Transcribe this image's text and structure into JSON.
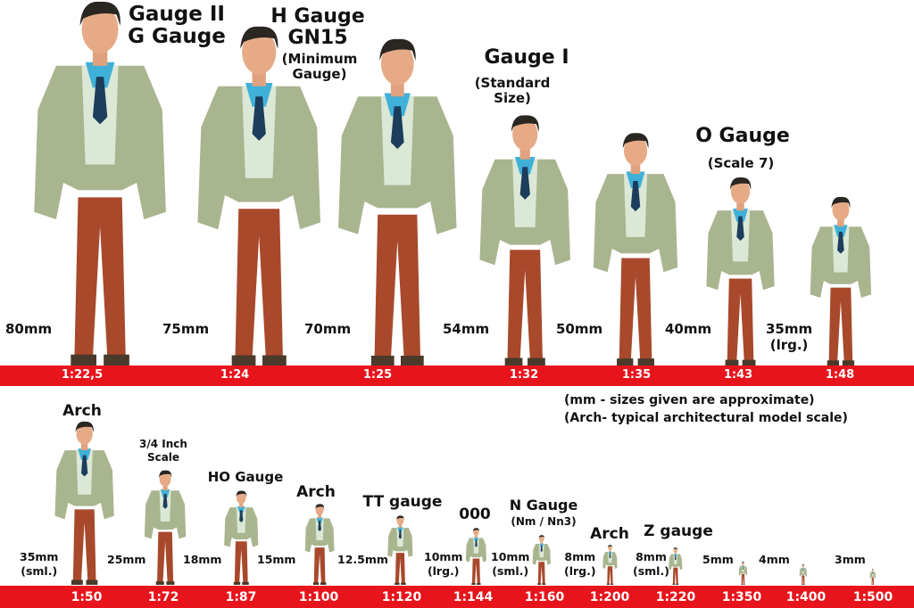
{
  "top_row": [
    {
      "title": [
        "Gauge II",
        "G Gauge"
      ],
      "subtitle": "",
      "size": "80mm",
      "scale": "1:22,5"
    },
    {
      "title": [
        "H Gauge",
        "GN15"
      ],
      "subtitle": "(Minimum\nGauge)",
      "size": "75mm",
      "scale": "1:24"
    },
    {
      "title": [],
      "subtitle": "",
      "size": "70mm",
      "scale": "1:25"
    },
    {
      "title": [
        "Gauge I"
      ],
      "subtitle": "(Standard\nSize)",
      "size": "54mm",
      "scale": "1:32"
    },
    {
      "title": [],
      "subtitle": "",
      "size": "50mm",
      "scale": "1:35"
    },
    {
      "title": [
        "O Gauge"
      ],
      "subtitle": "(Scale 7)",
      "size": "40mm",
      "scale": "1:43"
    },
    {
      "title": [],
      "subtitle": "",
      "size": "35mm\n(lrg.)",
      "scale": "1:48"
    }
  ],
  "notes": [
    "(mm - sizes given are approximate)",
    "(Arch- typical architectural model scale)"
  ],
  "bottom_row": [
    {
      "title": "Arch",
      "subtitle": "",
      "size": "35mm\n(sml.)",
      "scale": "1:50"
    },
    {
      "title": "3/4 Inch\nScale",
      "subtitle": "",
      "size": "25mm",
      "scale": "1:72"
    },
    {
      "title": "HO Gauge",
      "subtitle": "",
      "size": "18mm",
      "scale": "1:87"
    },
    {
      "title": "Arch",
      "subtitle": "",
      "size": "15mm",
      "scale": "1:100"
    },
    {
      "title": "TT gauge",
      "subtitle": "",
      "size": "12.5mm",
      "scale": "1:120"
    },
    {
      "title": "000",
      "subtitle": "",
      "size": "10mm\n(lrg.)",
      "scale": "1:144"
    },
    {
      "title": "N Gauge",
      "subtitle": "(Nm / Nn3)",
      "size": "10mm\n(sml.)",
      "scale": "1:160"
    },
    {
      "title": "Arch",
      "subtitle": "",
      "size": "8mm\n(lrg.)",
      "scale": "1:200"
    },
    {
      "title": "Z gauge",
      "subtitle": "",
      "size": "8mm\n(sml.)",
      "scale": "1:220"
    },
    {
      "title": "",
      "subtitle": "",
      "size": "5mm",
      "scale": "1:350"
    },
    {
      "title": "",
      "subtitle": "",
      "size": "4mm",
      "scale": "1:400"
    },
    {
      "title": "",
      "subtitle": "",
      "size": "3mm",
      "scale": "1:500"
    }
  ],
  "colors": {
    "band": "#e8141c",
    "jacket": "#a9b58f",
    "trousers": "#a8492c",
    "shirt": "#3fb0d8",
    "tie": "#1c3d5c"
  }
}
